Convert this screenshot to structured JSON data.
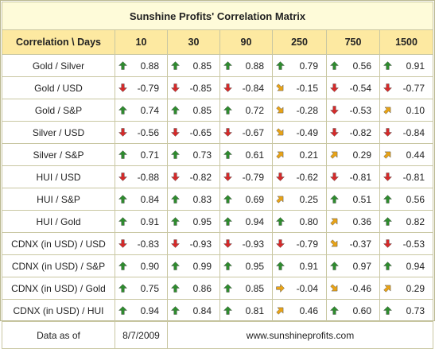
{
  "title": "Sunshine Profits' Correlation Matrix",
  "header": {
    "label": "Correlation \\ Days",
    "columns": [
      "10",
      "30",
      "90",
      "250",
      "750",
      "1500"
    ]
  },
  "rows": [
    {
      "label": "Gold / Silver",
      "cells": [
        {
          "value": "0.88",
          "arrow": "up"
        },
        {
          "value": "0.85",
          "arrow": "up"
        },
        {
          "value": "0.88",
          "arrow": "up"
        },
        {
          "value": "0.79",
          "arrow": "up"
        },
        {
          "value": "0.56",
          "arrow": "up"
        },
        {
          "value": "0.91",
          "arrow": "up"
        }
      ]
    },
    {
      "label": "Gold / USD",
      "cells": [
        {
          "value": "-0.79",
          "arrow": "down"
        },
        {
          "value": "-0.85",
          "arrow": "down"
        },
        {
          "value": "-0.84",
          "arrow": "down"
        },
        {
          "value": "-0.15",
          "arrow": "down-right"
        },
        {
          "value": "-0.54",
          "arrow": "down"
        },
        {
          "value": "-0.77",
          "arrow": "down"
        }
      ]
    },
    {
      "label": "Gold / S&P",
      "cells": [
        {
          "value": "0.74",
          "arrow": "up"
        },
        {
          "value": "0.85",
          "arrow": "up"
        },
        {
          "value": "0.72",
          "arrow": "up"
        },
        {
          "value": "-0.28",
          "arrow": "down-right"
        },
        {
          "value": "-0.53",
          "arrow": "down"
        },
        {
          "value": "0.10",
          "arrow": "up-right"
        }
      ]
    },
    {
      "label": "Silver / USD",
      "cells": [
        {
          "value": "-0.56",
          "arrow": "down"
        },
        {
          "value": "-0.65",
          "arrow": "down"
        },
        {
          "value": "-0.67",
          "arrow": "down"
        },
        {
          "value": "-0.49",
          "arrow": "down-right"
        },
        {
          "value": "-0.82",
          "arrow": "down"
        },
        {
          "value": "-0.84",
          "arrow": "down"
        }
      ]
    },
    {
      "label": "Silver / S&P",
      "cells": [
        {
          "value": "0.71",
          "arrow": "up"
        },
        {
          "value": "0.73",
          "arrow": "up"
        },
        {
          "value": "0.61",
          "arrow": "up"
        },
        {
          "value": "0.21",
          "arrow": "up-right"
        },
        {
          "value": "0.29",
          "arrow": "up-right"
        },
        {
          "value": "0.44",
          "arrow": "up-right"
        }
      ]
    },
    {
      "label": "HUI / USD",
      "cells": [
        {
          "value": "-0.88",
          "arrow": "down"
        },
        {
          "value": "-0.82",
          "arrow": "down"
        },
        {
          "value": "-0.79",
          "arrow": "down"
        },
        {
          "value": "-0.62",
          "arrow": "down"
        },
        {
          "value": "-0.81",
          "arrow": "down"
        },
        {
          "value": "-0.81",
          "arrow": "down"
        }
      ]
    },
    {
      "label": "HUI / S&P",
      "cells": [
        {
          "value": "0.84",
          "arrow": "up"
        },
        {
          "value": "0.83",
          "arrow": "up"
        },
        {
          "value": "0.69",
          "arrow": "up"
        },
        {
          "value": "0.25",
          "arrow": "up-right"
        },
        {
          "value": "0.51",
          "arrow": "up"
        },
        {
          "value": "0.56",
          "arrow": "up"
        }
      ]
    },
    {
      "label": "HUI / Gold",
      "cells": [
        {
          "value": "0.91",
          "arrow": "up"
        },
        {
          "value": "0.95",
          "arrow": "up"
        },
        {
          "value": "0.94",
          "arrow": "up"
        },
        {
          "value": "0.80",
          "arrow": "up"
        },
        {
          "value": "0.36",
          "arrow": "up-right"
        },
        {
          "value": "0.82",
          "arrow": "up"
        }
      ]
    },
    {
      "label": "CDNX (in USD) / USD",
      "cells": [
        {
          "value": "-0.83",
          "arrow": "down"
        },
        {
          "value": "-0.93",
          "arrow": "down"
        },
        {
          "value": "-0.93",
          "arrow": "down"
        },
        {
          "value": "-0.79",
          "arrow": "down"
        },
        {
          "value": "-0.37",
          "arrow": "down-right"
        },
        {
          "value": "-0.53",
          "arrow": "down"
        }
      ]
    },
    {
      "label": "CDNX (in USD) / S&P",
      "cells": [
        {
          "value": "0.90",
          "arrow": "up"
        },
        {
          "value": "0.99",
          "arrow": "up"
        },
        {
          "value": "0.95",
          "arrow": "up"
        },
        {
          "value": "0.91",
          "arrow": "up"
        },
        {
          "value": "0.97",
          "arrow": "up"
        },
        {
          "value": "0.94",
          "arrow": "up"
        }
      ]
    },
    {
      "label": "CDNX (in USD) / Gold",
      "cells": [
        {
          "value": "0.75",
          "arrow": "up"
        },
        {
          "value": "0.86",
          "arrow": "up"
        },
        {
          "value": "0.85",
          "arrow": "up"
        },
        {
          "value": "-0.04",
          "arrow": "right"
        },
        {
          "value": "-0.46",
          "arrow": "down-right"
        },
        {
          "value": "0.29",
          "arrow": "up-right"
        }
      ]
    },
    {
      "label": "CDNX (in USD) / HUI",
      "cells": [
        {
          "value": "0.94",
          "arrow": "up"
        },
        {
          "value": "0.84",
          "arrow": "up"
        },
        {
          "value": "0.81",
          "arrow": "up"
        },
        {
          "value": "0.46",
          "arrow": "up-right"
        },
        {
          "value": "0.60",
          "arrow": "up"
        },
        {
          "value": "0.73",
          "arrow": "up"
        }
      ]
    }
  ],
  "footer": {
    "label": "Data as of",
    "date": "8/7/2009",
    "website": "www.sunshineprofits.com"
  },
  "colors": {
    "up": "#2e8b2e",
    "down": "#d42a2a",
    "up-right": "#e8a317",
    "down-right": "#e8a317",
    "right": "#e8a317",
    "title_bg": "#fefbd9",
    "header_bg": "#fde9a1",
    "grid": "#c9c7a2"
  }
}
